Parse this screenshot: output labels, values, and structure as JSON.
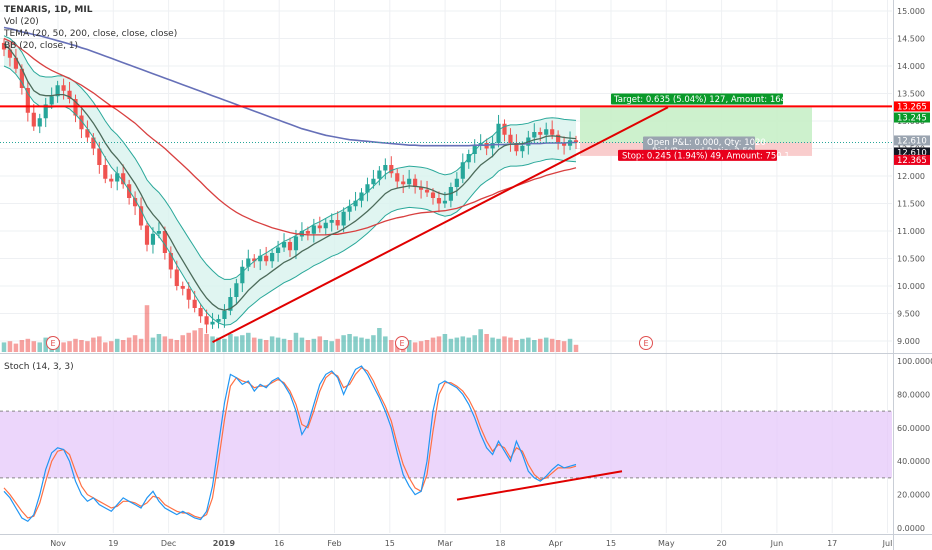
{
  "colors": {
    "background": "#ffffff",
    "grid": "#eef0f3",
    "up_candle": "#26a69a",
    "down_candle": "#ef5350",
    "resistance": "#ff0000",
    "trendline": "#e00000",
    "target_zone": "#c8f0c8",
    "stop_zone": "#f8c8c8",
    "target_tag": "#0a9a2a",
    "stop_tag": "#e8001c",
    "pnl_tag": "#9aa4b0",
    "price_tag_dark": "#131722",
    "sma200": "#6670b8",
    "ema50": "#d84040",
    "tema20": "#4c6b5a",
    "bb": "#2aa89a",
    "bb_fill": "#d8f2ee",
    "stoch_k": "#2196f3",
    "stoch_d": "#ff7043",
    "stoch_band": "#e6c8fa",
    "earnings": "#e05050"
  },
  "legend": {
    "title": "TENARIS, 1D, MIL",
    "vol": "Vol (20)",
    "tema": "TEMA (20, 50, 200, close, close, close)",
    "bb": "BB (20, close, 1)",
    "stoch": "Stoch (14, 3, 3)"
  },
  "position": {
    "target_label": "Target: 0.635 (5.04%) 127, Amount: 1647.7",
    "pnl_label_1": "Open P&L: 0.000, Qty: 1020",
    "pnl_label_2": "Risk/Reward Ratio: 2.59",
    "stop_label": "Stop: 0.245 (1.94%) 49, Amount: 750.1",
    "entry": 12.61,
    "target": 13.245,
    "stop": 12.365
  },
  "price_tags": [
    {
      "value": "13.265",
      "color": "#ff0000"
    },
    {
      "value": "13.245",
      "color": "#0a9a2a"
    },
    {
      "value": "12.610",
      "color": "#9aa4b0"
    },
    {
      "value": "12.610",
      "color": "#131722"
    },
    {
      "value": "12.365",
      "color": "#e8001c"
    }
  ],
  "earnings_markers": [
    "E",
    "E",
    "E"
  ],
  "chart_data": {
    "type": "candlestick",
    "price_axis": {
      "ylim": [
        8.8,
        15.2
      ],
      "ticks": [
        "15.000",
        "14.500",
        "14.000",
        "13.500",
        "13.000",
        "12.500",
        "12.000",
        "11.500",
        "11.000",
        "10.500",
        "10.000",
        "9.500",
        "9.000"
      ],
      "tick_values": [
        15.0,
        14.5,
        14.0,
        13.5,
        13.0,
        12.5,
        12.0,
        11.5,
        11.0,
        10.5,
        10.0,
        9.5,
        9.0
      ]
    },
    "stoch_axis": {
      "ylim": [
        -3,
        103
      ],
      "ticks": [
        "100.0000",
        "80.0000",
        "60.0000",
        "40.0000",
        "20.0000",
        "0.0000"
      ],
      "tick_values": [
        100,
        80,
        60,
        40,
        20,
        0
      ],
      "upper_band": 70,
      "lower_band": 30
    },
    "x_axis": {
      "labels": [
        "Nov",
        "19",
        "Dec",
        "2019",
        "16",
        "Feb",
        "15",
        "Mar",
        "18",
        "Apr",
        "15",
        "May",
        "20",
        "Jun",
        "17",
        "Jul",
        "15"
      ]
    },
    "resistance_level": 13.265,
    "close": [
      14.3,
      14.15,
      13.95,
      13.6,
      13.15,
      12.9,
      13.05,
      13.3,
      13.45,
      13.65,
      13.55,
      13.4,
      13.1,
      12.85,
      12.7,
      12.5,
      12.2,
      11.95,
      11.9,
      12.05,
      11.85,
      11.6,
      11.45,
      11.1,
      10.75,
      10.95,
      11.0,
      10.6,
      10.3,
      10.0,
      9.95,
      9.75,
      9.6,
      9.45,
      9.3,
      9.35,
      9.4,
      9.55,
      9.8,
      10.05,
      10.35,
      10.5,
      10.45,
      10.55,
      10.45,
      10.6,
      10.7,
      10.8,
      10.65,
      10.9,
      11.0,
      10.95,
      11.1,
      11.05,
      11.15,
      11.2,
      11.1,
      11.35,
      11.45,
      11.55,
      11.7,
      11.85,
      11.95,
      12.1,
      12.2,
      12.05,
      11.9,
      11.85,
      11.95,
      11.8,
      11.75,
      11.7,
      11.6,
      11.5,
      11.55,
      11.8,
      11.95,
      12.25,
      12.4,
      12.55,
      12.6,
      12.5,
      12.6,
      12.95,
      12.75,
      12.6,
      12.45,
      12.55,
      12.7,
      12.8,
      12.75,
      12.85,
      12.75,
      12.6,
      12.55,
      12.65,
      12.61
    ],
    "volume": [
      0.8,
      0.9,
      0.7,
      1.0,
      1.1,
      0.9,
      0.8,
      1.2,
      1.3,
      1.0,
      0.8,
      0.9,
      1.1,
      1.0,
      0.9,
      1.2,
      1.3,
      0.8,
      0.9,
      1.1,
      1.0,
      1.2,
      1.4,
      1.1,
      3.9,
      1.2,
      1.5,
      1.3,
      1.1,
      1.0,
      1.4,
      1.6,
      1.8,
      2.0,
      1.5,
      1.3,
      1.2,
      1.1,
      1.5,
      1.3,
      1.4,
      1.6,
      1.2,
      1.1,
      1.0,
      1.3,
      1.2,
      1.1,
      1.0,
      1.6,
      1.2,
      1.0,
      1.1,
      1.3,
      1.0,
      0.9,
      1.1,
      1.4,
      1.5,
      1.3,
      1.2,
      1.1,
      1.4,
      2.0,
      1.3,
      1.0,
      0.9,
      1.1,
      1.0,
      0.8,
      0.9,
      1.0,
      1.2,
      1.3,
      1.5,
      1.1,
      1.2,
      1.3,
      1.2,
      1.4,
      1.9,
      1.5,
      1.2,
      1.1,
      1.3,
      1.2,
      1.0,
      1.1,
      1.2,
      1.0,
      1.1,
      1.2,
      1.1,
      1.0,
      0.9,
      1.1,
      0.6
    ],
    "sma200": [
      14.7,
      14.68,
      14.65,
      14.62,
      14.6,
      14.57,
      14.55,
      14.52,
      14.49,
      14.46,
      14.43,
      14.4,
      14.37,
      14.33,
      14.3,
      14.26,
      14.22,
      14.18,
      14.14,
      14.1,
      14.06,
      14.02,
      13.98,
      13.94,
      13.9,
      13.86,
      13.82,
      13.78,
      13.74,
      13.7,
      13.66,
      13.62,
      13.58,
      13.54,
      13.5,
      13.46,
      13.42,
      13.38,
      13.34,
      13.3,
      13.26,
      13.22,
      13.18,
      13.14,
      13.1,
      13.06,
      13.02,
      12.98,
      12.94,
      12.9,
      12.86,
      12.83,
      12.8,
      12.77,
      12.74,
      12.72,
      12.7,
      12.68,
      12.66,
      12.65,
      12.64,
      12.63,
      12.62,
      12.61,
      12.6,
      12.59,
      12.58,
      12.57,
      12.56,
      12.56,
      12.55,
      12.55,
      12.55,
      12.55,
      12.55,
      12.55,
      12.55,
      12.55,
      12.55,
      12.56,
      12.56,
      12.56,
      12.57,
      12.57,
      12.57,
      12.58,
      12.58,
      12.58,
      12.59,
      12.59,
      12.59,
      12.6,
      12.6,
      12.6,
      12.6,
      12.61,
      12.61
    ],
    "ema50": [
      14.5,
      14.45,
      14.38,
      14.3,
      14.22,
      14.13,
      14.05,
      13.98,
      13.92,
      13.87,
      13.82,
      13.77,
      13.71,
      13.65,
      13.58,
      13.51,
      13.43,
      13.35,
      13.27,
      13.2,
      13.12,
      13.04,
      12.96,
      12.86,
      12.76,
      12.67,
      12.59,
      12.5,
      12.4,
      12.3,
      12.2,
      12.1,
      11.99,
      11.89,
      11.78,
      11.68,
      11.58,
      11.49,
      11.41,
      11.34,
      11.28,
      11.23,
      11.18,
      11.14,
      11.1,
      11.06,
      11.03,
      11.0,
      10.97,
      10.95,
      10.94,
      10.93,
      10.93,
      10.93,
      10.93,
      10.94,
      10.94,
      10.96,
      10.98,
      11.0,
      11.03,
      11.06,
      11.1,
      11.14,
      11.18,
      11.21,
      11.24,
      11.26,
      11.29,
      11.31,
      11.33,
      11.34,
      11.35,
      11.36,
      11.37,
      11.39,
      11.41,
      11.45,
      11.49,
      11.53,
      11.58,
      11.62,
      11.66,
      11.71,
      11.75,
      11.79,
      11.82,
      11.86,
      11.9,
      11.94,
      11.97,
      12.01,
      12.04,
      12.07,
      12.1,
      12.12,
      12.15
    ],
    "tema20": [
      14.4,
      14.3,
      14.15,
      13.95,
      13.72,
      13.55,
      13.48,
      13.46,
      13.46,
      13.48,
      13.48,
      13.44,
      13.35,
      13.24,
      13.11,
      12.96,
      12.79,
      12.6,
      12.44,
      12.32,
      12.18,
      12.02,
      11.86,
      11.67,
      11.45,
      11.3,
      11.18,
      11.02,
      10.84,
      10.64,
      10.46,
      10.28,
      10.1,
      9.93,
      9.78,
      9.67,
      9.59,
      9.56,
      9.59,
      9.67,
      9.79,
      9.92,
      10.02,
      10.12,
      10.19,
      10.27,
      10.35,
      10.43,
      10.48,
      10.55,
      10.63,
      10.69,
      10.76,
      10.82,
      10.88,
      10.94,
      10.98,
      11.04,
      11.11,
      11.18,
      11.27,
      11.36,
      11.46,
      11.57,
      11.68,
      11.75,
      11.78,
      11.8,
      11.82,
      11.81,
      11.8,
      11.78,
      11.74,
      11.69,
      11.66,
      11.68,
      11.73,
      11.83,
      11.95,
      12.08,
      12.2,
      12.28,
      12.36,
      12.48,
      12.55,
      12.58,
      12.58,
      12.59,
      12.62,
      12.66,
      12.68,
      12.72,
      12.73,
      12.72,
      12.7,
      12.69,
      12.68
    ],
    "bb_upper": [
      14.55,
      14.5,
      14.4,
      14.25,
      14.05,
      13.9,
      13.82,
      13.8,
      13.8,
      13.82,
      13.82,
      13.78,
      13.7,
      13.6,
      13.48,
      13.34,
      13.18,
      13.0,
      12.85,
      12.75,
      12.62,
      12.47,
      12.32,
      12.14,
      11.93,
      11.8,
      11.7,
      11.56,
      11.4,
      11.21,
      11.04,
      10.87,
      10.7,
      10.53,
      10.39,
      10.28,
      10.18,
      10.12,
      10.12,
      10.16,
      10.25,
      10.36,
      10.45,
      10.54,
      10.6,
      10.67,
      10.74,
      10.81,
      10.86,
      10.92,
      10.99,
      11.05,
      11.12,
      11.17,
      11.23,
      11.29,
      11.33,
      11.39,
      11.46,
      11.53,
      11.62,
      11.71,
      11.81,
      11.92,
      12.03,
      12.1,
      12.14,
      12.16,
      12.18,
      12.17,
      12.16,
      12.14,
      12.1,
      12.05,
      12.02,
      12.04,
      12.1,
      12.2,
      12.33,
      12.46,
      12.58,
      12.66,
      12.73,
      12.84,
      12.9,
      12.93,
      12.93,
      12.94,
      12.96,
      13.0,
      13.02,
      13.05,
      13.06,
      13.05,
      13.03,
      13.02,
      13.01
    ],
    "bb_lower": [
      14.0,
      13.95,
      13.85,
      13.7,
      13.5,
      13.35,
      13.27,
      13.25,
      13.25,
      13.27,
      13.27,
      13.22,
      13.12,
      13.0,
      12.86,
      12.7,
      12.52,
      12.33,
      12.16,
      12.04,
      11.9,
      11.74,
      11.57,
      11.38,
      11.16,
      11.01,
      10.9,
      10.75,
      10.58,
      10.38,
      10.2,
      10.02,
      9.84,
      9.67,
      9.52,
      9.41,
      9.33,
      9.29,
      9.3,
      9.37,
      9.48,
      9.6,
      9.69,
      9.78,
      9.85,
      9.92,
      9.99,
      10.06,
      10.11,
      10.17,
      10.24,
      10.3,
      10.37,
      10.42,
      10.48,
      10.54,
      10.58,
      10.64,
      10.71,
      10.78,
      10.87,
      10.96,
      11.06,
      11.17,
      11.28,
      11.35,
      11.39,
      11.41,
      11.43,
      11.42,
      11.41,
      11.39,
      11.35,
      11.3,
      11.27,
      11.29,
      11.35,
      11.45,
      11.58,
      11.71,
      11.83,
      11.91,
      11.98,
      12.09,
      12.15,
      12.18,
      12.18,
      12.19,
      12.21,
      12.25,
      12.27,
      12.3,
      12.31,
      12.3,
      12.28,
      12.27,
      12.26
    ],
    "stoch_k": [
      22,
      18,
      12,
      6,
      4,
      8,
      20,
      35,
      45,
      48,
      47,
      40,
      28,
      20,
      16,
      18,
      14,
      12,
      10,
      14,
      18,
      16,
      14,
      12,
      18,
      22,
      16,
      12,
      10,
      8,
      10,
      8,
      6,
      5,
      10,
      25,
      50,
      75,
      92,
      90,
      86,
      88,
      82,
      86,
      84,
      88,
      90,
      86,
      80,
      70,
      56,
      62,
      74,
      86,
      92,
      94,
      90,
      80,
      88,
      95,
      97,
      92,
      85,
      78,
      70,
      60,
      45,
      32,
      25,
      20,
      22,
      40,
      70,
      86,
      88,
      86,
      84,
      80,
      74,
      66,
      56,
      48,
      44,
      52,
      46,
      40,
      52,
      44,
      34,
      30,
      28,
      31,
      35,
      38,
      36,
      37,
      38
    ],
    "stoch_d": [
      24,
      20,
      15,
      10,
      6,
      7,
      15,
      28,
      40,
      46,
      47,
      44,
      34,
      25,
      20,
      18,
      16,
      14,
      12,
      13,
      16,
      16,
      15,
      13,
      15,
      19,
      18,
      14,
      12,
      10,
      9,
      9,
      7,
      6,
      8,
      18,
      40,
      65,
      85,
      90,
      88,
      87,
      84,
      85,
      85,
      87,
      89,
      87,
      82,
      74,
      62,
      60,
      70,
      82,
      90,
      93,
      91,
      84,
      86,
      92,
      96,
      94,
      88,
      80,
      73,
      64,
      50,
      38,
      30,
      24,
      22,
      32,
      58,
      80,
      87,
      87,
      85,
      82,
      77,
      70,
      60,
      52,
      46,
      50,
      48,
      42,
      48,
      46,
      38,
      32,
      29,
      30,
      33,
      36,
      36,
      36,
      37
    ]
  }
}
